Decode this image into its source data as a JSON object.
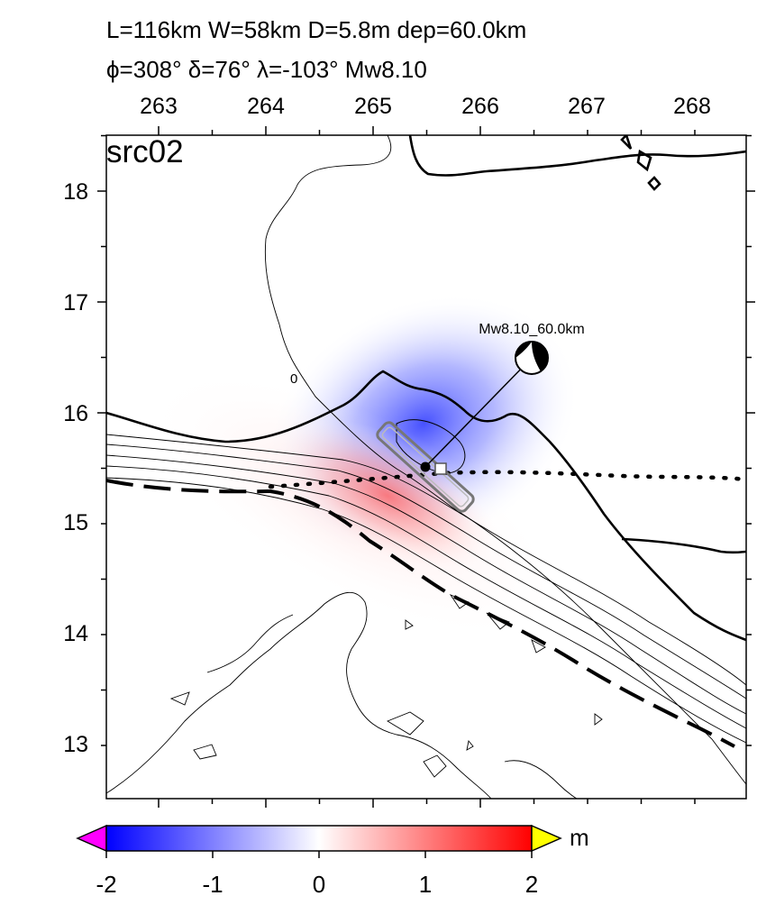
{
  "header": {
    "line1": "L=116km W=58km D=5.8m dep=60.0km",
    "line2": "ϕ=308° δ=76° λ=-103° Mw8.10"
  },
  "map": {
    "panel_label": "src02",
    "lon_ticks": [
      "263",
      "264",
      "265",
      "266",
      "267",
      "268"
    ],
    "lat_ticks": [
      "18",
      "17",
      "16",
      "15",
      "14",
      "13"
    ],
    "contour_label": "0",
    "mechanism_label": "Mw8.10_60.0km"
  },
  "colorbar": {
    "unit": "m",
    "ticks": [
      "-2",
      "-1",
      "0",
      "1",
      "2"
    ],
    "colors": {
      "low": "#0000ff",
      "mid": "#ffffff",
      "high": "#ff0000",
      "under": "#ff00ff",
      "over": "#ffff00"
    }
  }
}
